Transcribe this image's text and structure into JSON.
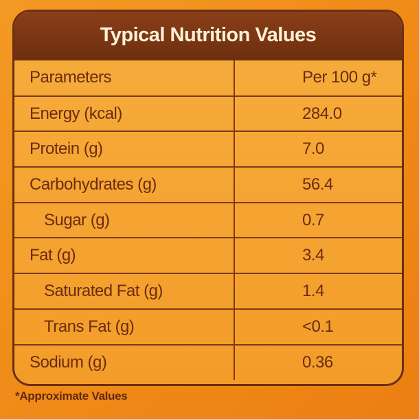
{
  "title": "Typical Nutrition Values",
  "table": {
    "header": {
      "parameter": "Parameters",
      "value": "Per 100 g*"
    },
    "rows": [
      {
        "label": "Energy (kcal)",
        "value": "284.0"
      },
      {
        "label": "Protein (g)",
        "value": "7.0"
      },
      {
        "label": "Carbohydrates (g)",
        "value": "56.4"
      },
      {
        "label": "Sugar (g)",
        "value": "0.7"
      },
      {
        "label": "Fat (g)",
        "value": "3.4"
      },
      {
        "label": "Saturated Fat (g)",
        "value": "1.4"
      },
      {
        "label": "Trans Fat (g)",
        "value": "<0.1"
      },
      {
        "label": "Sodium (g)",
        "value": "0.36"
      }
    ]
  },
  "footnote": "*Approximate Values",
  "colors": {
    "background": "#f08a17",
    "header_band": "#7a3513",
    "text": "#6a2d0f",
    "title_text": "#fff2d8"
  }
}
